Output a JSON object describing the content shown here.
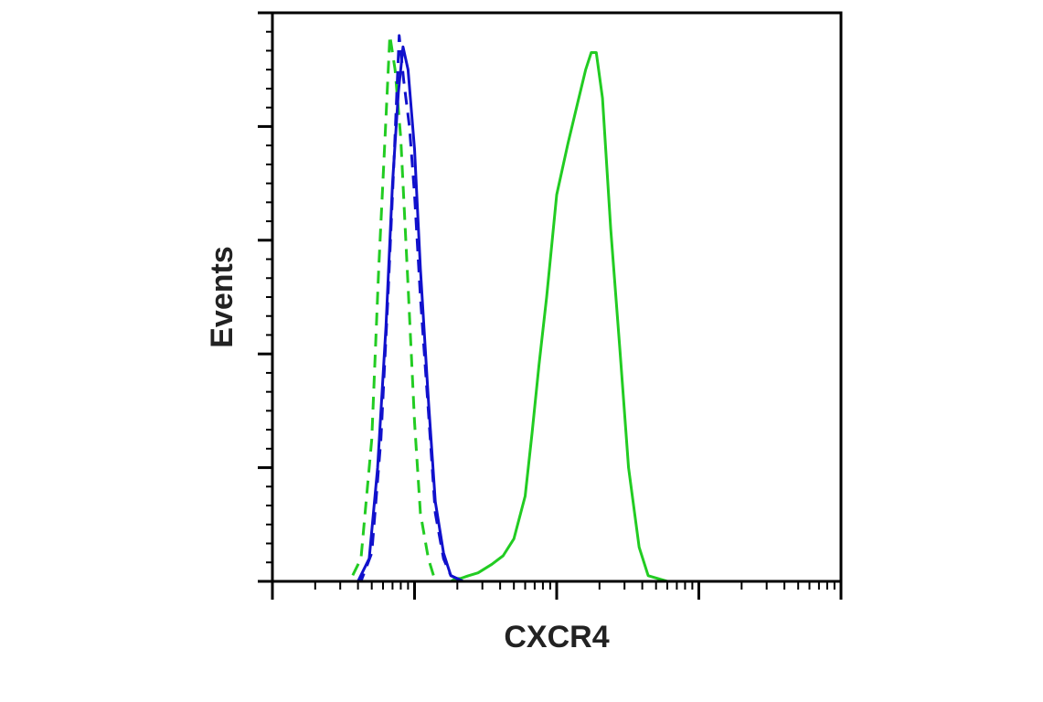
{
  "chart_data": {
    "type": "line",
    "title": "",
    "xlabel": "CXCR4",
    "ylabel": "Events",
    "x_scale": "log",
    "xlim": [
      1,
      10000
    ],
    "ylim": [
      0,
      1
    ],
    "grid": false,
    "legend": "none",
    "series": [
      {
        "style": "solid",
        "color": "#22cc22",
        "x": [
          1,
          18,
          19.5,
          21,
          24,
          28,
          35,
          42,
          50,
          60,
          67,
          75,
          85,
          100,
          120,
          140,
          160,
          175,
          190,
          210,
          240,
          280,
          320,
          380,
          440,
          600,
          2000,
          10000
        ],
        "y": [
          0,
          0,
          0.005,
          0.005,
          0.01,
          0.015,
          0.03,
          0.045,
          0.075,
          0.15,
          0.26,
          0.38,
          0.5,
          0.68,
          0.77,
          0.84,
          0.9,
          0.93,
          0.93,
          0.85,
          0.62,
          0.4,
          0.2,
          0.06,
          0.01,
          0,
          0,
          0
        ]
      },
      {
        "style": "dashed",
        "color": "#22cc22",
        "x": [
          1,
          3.5,
          4.2,
          5,
          5.6,
          6.2,
          6.7,
          7.3,
          8,
          9,
          10,
          11,
          12.5,
          14,
          10000
        ],
        "y": [
          0,
          0,
          0.04,
          0.25,
          0.55,
          0.78,
          0.96,
          0.9,
          0.78,
          0.52,
          0.28,
          0.12,
          0.04,
          0,
          0
        ]
      },
      {
        "style": "solid",
        "color": "#1111cc",
        "x": [
          1,
          4,
          4.8,
          5.5,
          6.3,
          7,
          7.7,
          8.3,
          9,
          10,
          11,
          12.5,
          14,
          16,
          18,
          22,
          10000
        ],
        "y": [
          0,
          0,
          0.04,
          0.2,
          0.45,
          0.7,
          0.86,
          0.94,
          0.9,
          0.76,
          0.55,
          0.32,
          0.14,
          0.05,
          0.01,
          0,
          0
        ]
      },
      {
        "style": "dashed",
        "color": "#1111cc",
        "x": [
          1,
          4.2,
          5,
          5.8,
          6.5,
          7.2,
          7.8,
          8.4,
          9.2,
          10,
          11,
          12.5,
          14,
          16,
          18,
          22,
          10000
        ],
        "y": [
          0,
          0,
          0.05,
          0.25,
          0.5,
          0.75,
          0.96,
          0.88,
          0.8,
          0.68,
          0.5,
          0.3,
          0.12,
          0.04,
          0.01,
          0,
          0
        ]
      }
    ]
  }
}
